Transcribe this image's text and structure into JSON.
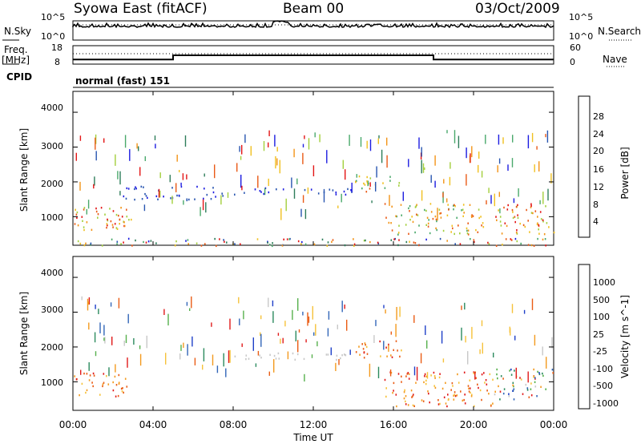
{
  "header": {
    "station": "Syowa East (fitACF)",
    "beam": "Beam 00",
    "date": "03/Oct/2009"
  },
  "top_panels": {
    "nsky_label": "N.Sky",
    "nsky_ticks": [
      "10^5",
      "10^0"
    ],
    "nsearch_label": "N.Search",
    "nsearch_ticks": [
      "10^5",
      "10^0"
    ],
    "freq_label": "Freq.",
    "freq_unit": "[MHz]",
    "freq_ticks": [
      "18",
      "8"
    ],
    "nave_label": "Nave",
    "nave_ticks": [
      "60",
      "0"
    ],
    "cpid_label": "CPID",
    "cpid_text": "normal (fast) 151"
  },
  "chart_data": [
    {
      "type": "line",
      "name": "N.Sky / N.Search",
      "y_scale": "log",
      "ylim": [
        1,
        100000
      ]
    },
    {
      "type": "line",
      "name": "Frequency / Nave",
      "freq_ylim": [
        8,
        18
      ],
      "nave_ylim": [
        0,
        60
      ],
      "frequency_steps": [
        {
          "from_ut": 0,
          "to_ut": 5,
          "value": 10.5
        },
        {
          "from_ut": 5,
          "to_ut": 18,
          "value": 12.8
        },
        {
          "from_ut": 18,
          "to_ut": 24,
          "value": 10.5
        }
      ]
    },
    {
      "type": "heatmap",
      "name": "power",
      "ylabel": "Slant Range [km]",
      "ylim": [
        180,
        4600
      ],
      "yticks": [
        "4000",
        "3000",
        "2000",
        "1000"
      ],
      "colorbar_label": "Power [dB]",
      "colorbar_ticks": [
        "28",
        "24",
        "20",
        "16",
        "12",
        "8",
        "4"
      ],
      "colors": [
        "#1c1ce0",
        "#2855b0",
        "#2e7d5a",
        "#4aa96b",
        "#a3cf3c",
        "#f0c020",
        "#f39418",
        "#ea5a16",
        "#e31515"
      ],
      "features": [
        {
          "ut": [
            0.0,
            2.7
          ],
          "range_km": [
            600,
            1300
          ],
          "level": "high"
        },
        {
          "ut": [
            1.5,
            3.0
          ],
          "range_km": [
            700,
            1100
          ],
          "level": "high"
        },
        {
          "ut": [
            2.5,
            7.5
          ],
          "range_km": [
            1500,
            1900
          ],
          "level": "low"
        },
        {
          "ut": [
            8.0,
            14.0
          ],
          "range_km": [
            1650,
            1850
          ],
          "level": "low"
        },
        {
          "ut": [
            14.0,
            16.5
          ],
          "range_km": [
            1700,
            2200
          ],
          "level": "medium"
        },
        {
          "ut": [
            15.5,
            20.5
          ],
          "range_km": [
            500,
            1400
          ],
          "level": "medium"
        },
        {
          "ut": [
            21.0,
            24.0
          ],
          "range_km": [
            500,
            1400
          ],
          "level": "high"
        },
        {
          "ut": [
            0.0,
            24.0
          ],
          "range_km": [
            180,
            400
          ],
          "level": "mixed"
        }
      ]
    },
    {
      "type": "heatmap",
      "name": "velocity",
      "ylabel": "Slant Range [km]",
      "ylim": [
        180,
        4600
      ],
      "yticks": [
        "4000",
        "3000",
        "2000",
        "1000"
      ],
      "colorbar_label": "Velocity [m s^-1]",
      "colorbar_ticks": [
        "1000",
        "500",
        "100",
        "25",
        "-25",
        "-100",
        "-500",
        "-1000"
      ],
      "colors": [
        "#1e3fc8",
        "#3266b8",
        "#2b8a5e",
        "#56b04c",
        "#c8c8c8",
        "#f6c23a",
        "#f39a1e",
        "#ea5c14",
        "#e01a1a"
      ],
      "features": [
        {
          "ut": [
            0.0,
            2.7
          ],
          "range_km": [
            600,
            1300
          ],
          "level": "negative"
        },
        {
          "ut": [
            8.0,
            14.0
          ],
          "range_km": [
            1650,
            1850
          ],
          "level": "near-zero"
        },
        {
          "ut": [
            14.0,
            16.5
          ],
          "range_km": [
            1700,
            2200
          ],
          "level": "negative"
        },
        {
          "ut": [
            15.5,
            21.0
          ],
          "range_km": [
            300,
            1300
          ],
          "level": "negative"
        },
        {
          "ut": [
            21.0,
            24.0
          ],
          "range_km": [
            500,
            1400
          ],
          "level": "mixed"
        }
      ]
    }
  ],
  "x_axis": {
    "ticks": [
      "00:00",
      "04:00",
      "08:00",
      "12:00",
      "16:00",
      "20:00",
      "00:00"
    ],
    "label": "Time UT",
    "range_hours": [
      0,
      24
    ]
  }
}
